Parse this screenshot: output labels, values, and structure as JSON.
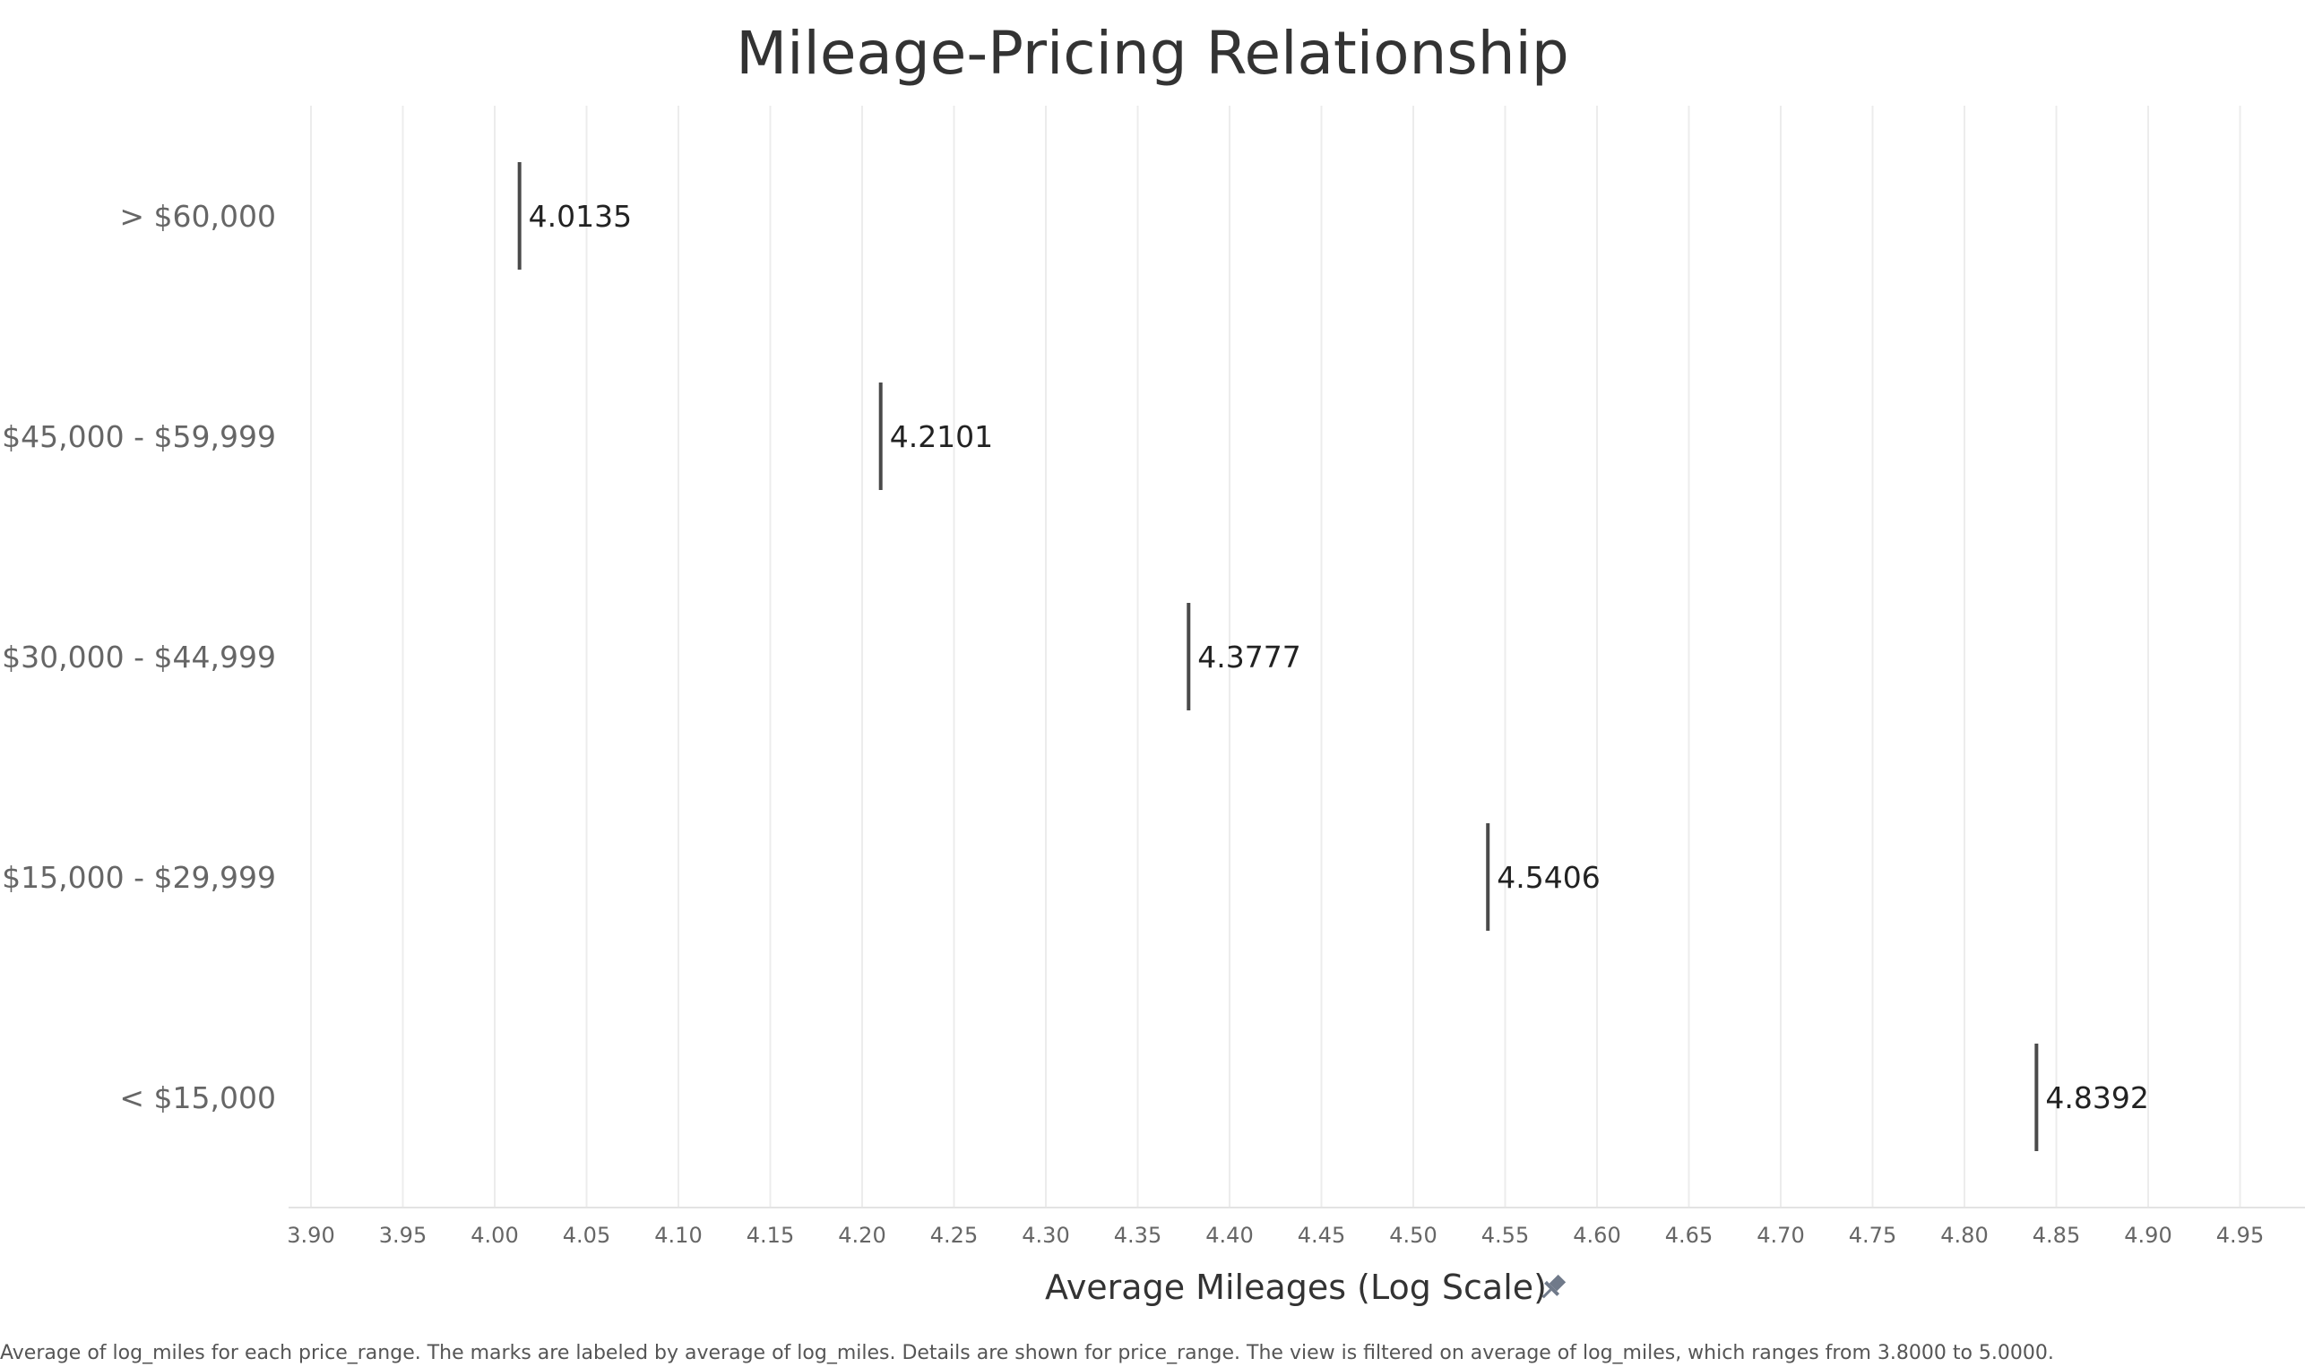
{
  "chart_data": {
    "type": "scatter",
    "mark_shape": "vertical-line",
    "title": "Mileage-Pricing Relationship",
    "xlabel": "Average Mileages (Log Scale)",
    "xlim": [
      3.885,
      5.0
    ],
    "x_ticks": [
      "3.90",
      "3.95",
      "4.00",
      "4.05",
      "4.10",
      "4.15",
      "4.20",
      "4.25",
      "4.30",
      "4.35",
      "4.40",
      "4.45",
      "4.50",
      "4.55",
      "4.60",
      "4.65",
      "4.70",
      "4.75",
      "4.80",
      "4.85",
      "4.90",
      "4.95"
    ],
    "grid": true,
    "categories": [
      "> $60,000",
      "$45,000 - $59,999",
      "$30,000 - $44,999",
      "$15,000 - $29,999",
      "< $15,000"
    ],
    "values": [
      4.0135,
      4.2101,
      4.3777,
      4.5406,
      4.8392
    ],
    "labels": [
      "4.0135",
      "4.2101",
      "4.3777",
      "4.5406",
      "4.8392"
    ],
    "caption": "Average of log_miles for each price_range.  The marks are labeled by average of log_miles.  Details are shown for price_range. The view is filtered on average of log_miles, which ranges from 3.8000 to 5.0000.",
    "mark_color": "#4a4a4a",
    "axis_title_icon": "pin-icon"
  }
}
